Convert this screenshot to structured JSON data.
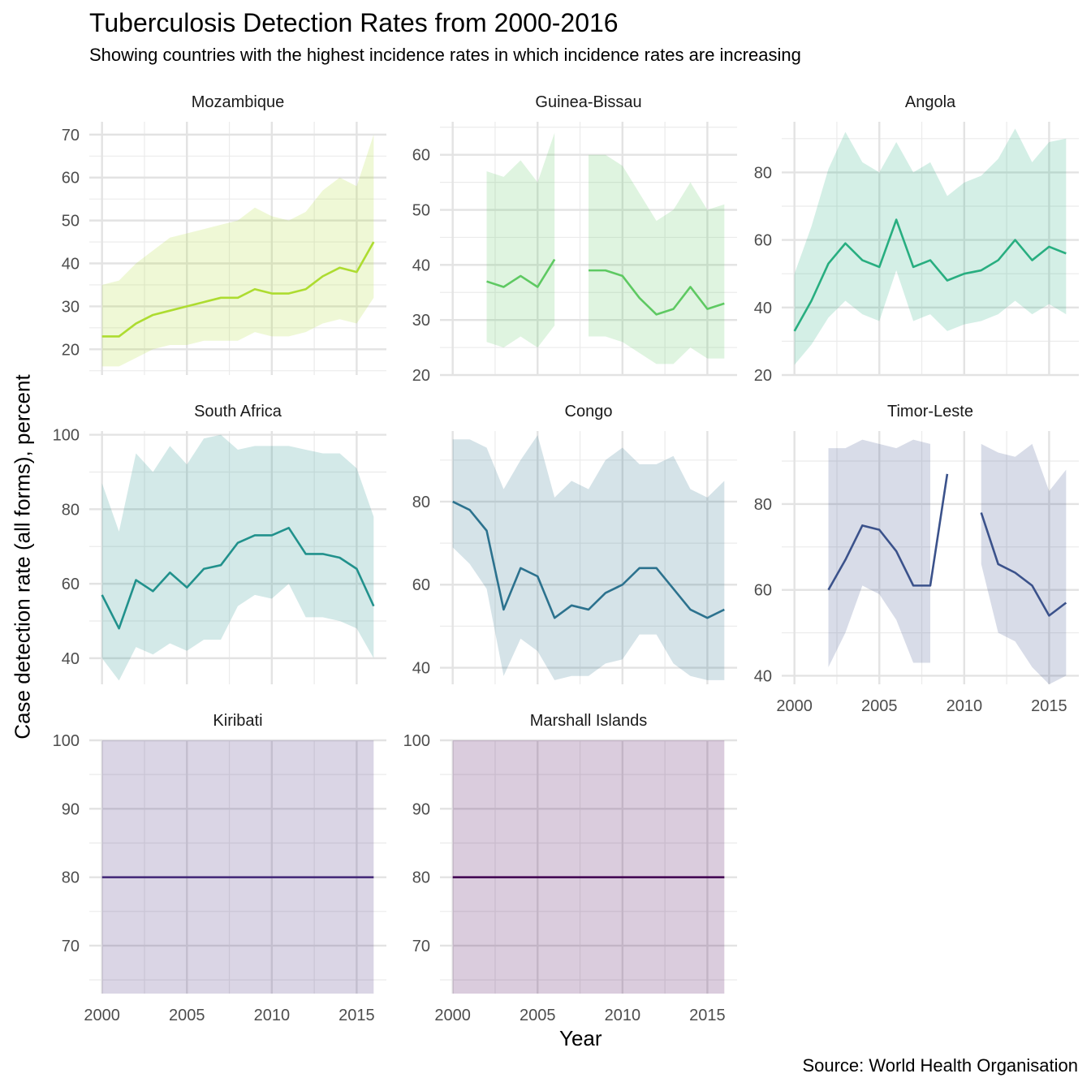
{
  "chart_data": {
    "type": "line",
    "title": "Tuberculosis Detection Rates from 2000-2016",
    "subtitle": "Showing countries with the highest incidence rates in which incidence rates are increasing",
    "caption": "Source: World Health Organisation",
    "xlabel": "Year",
    "ylabel": "Case detection rate (all forms), percent",
    "grid": true,
    "legend": "none",
    "x_ticks": [
      2000,
      2005,
      2010,
      2015
    ],
    "panels": [
      {
        "name": "Mozambique",
        "color": "#addc30",
        "years": [
          2000,
          2001,
          2002,
          2003,
          2004,
          2005,
          2006,
          2007,
          2008,
          2009,
          2010,
          2011,
          2012,
          2013,
          2014,
          2015,
          2016
        ],
        "values": [
          23,
          23,
          26,
          28,
          29,
          30,
          31,
          32,
          32,
          34,
          33,
          33,
          34,
          37,
          39,
          38,
          45
        ],
        "lower": [
          16,
          16,
          18,
          20,
          21,
          21,
          22,
          22,
          22,
          24,
          23,
          23,
          24,
          26,
          27,
          26,
          32
        ],
        "upper": [
          35,
          36,
          40,
          43,
          46,
          47,
          48,
          49,
          50,
          53,
          51,
          50,
          52,
          57,
          60,
          58,
          70
        ],
        "ylim": [
          14,
          73
        ],
        "y_ticks": [
          20,
          30,
          40,
          50,
          60,
          70
        ]
      },
      {
        "name": "Guinea-Bissau",
        "color": "#5ec962",
        "years": [
          2002,
          2003,
          2004,
          2005,
          2006,
          null,
          2008,
          2009,
          2010,
          2011,
          2012,
          2013,
          2014,
          2015,
          2016
        ],
        "values": [
          37,
          36,
          38,
          36,
          41,
          null,
          39,
          39,
          38,
          34,
          31,
          32,
          36,
          32,
          33
        ],
        "lower": [
          26,
          25,
          27,
          25,
          29,
          null,
          27,
          27,
          26,
          24,
          22,
          22,
          25,
          23,
          23
        ],
        "upper": [
          57,
          56,
          59,
          55,
          64,
          null,
          60,
          60,
          58,
          53,
          48,
          50,
          55,
          50,
          51
        ],
        "ylim": [
          20,
          66
        ],
        "y_ticks": [
          20,
          30,
          40,
          50,
          60
        ]
      },
      {
        "name": "Angola",
        "color": "#28ae80",
        "years": [
          2000,
          2001,
          2002,
          2003,
          2004,
          2005,
          2006,
          2007,
          2008,
          2009,
          2010,
          2011,
          2012,
          2013,
          2014,
          2015,
          2016
        ],
        "values": [
          33,
          42,
          53,
          59,
          54,
          52,
          66,
          52,
          54,
          48,
          50,
          51,
          54,
          60,
          54,
          58,
          56
        ],
        "lower": [
          23,
          29,
          37,
          42,
          38,
          36,
          51,
          36,
          38,
          33,
          35,
          36,
          38,
          42,
          38,
          41,
          38
        ],
        "upper": [
          50,
          64,
          81,
          92,
          83,
          80,
          89,
          80,
          83,
          73,
          77,
          79,
          84,
          93,
          83,
          89,
          90
        ],
        "ylim": [
          20,
          95
        ],
        "y_ticks": [
          20,
          40,
          60,
          80
        ]
      },
      {
        "name": "South Africa",
        "color": "#21918c",
        "years": [
          2000,
          2001,
          2002,
          2003,
          2004,
          2005,
          2006,
          2007,
          2008,
          2009,
          2010,
          2011,
          2012,
          2013,
          2014,
          2015,
          2016
        ],
        "values": [
          57,
          48,
          61,
          58,
          63,
          59,
          64,
          65,
          71,
          73,
          73,
          75,
          68,
          68,
          67,
          64,
          54
        ],
        "lower": [
          40,
          34,
          43,
          41,
          44,
          42,
          45,
          45,
          54,
          57,
          56,
          60,
          51,
          51,
          50,
          48,
          40
        ],
        "upper": [
          87,
          74,
          95,
          90,
          97,
          92,
          99,
          100,
          96,
          97,
          97,
          97,
          96,
          95,
          95,
          91,
          78
        ],
        "ylim": [
          33,
          101
        ],
        "y_ticks": [
          40,
          60,
          80,
          100
        ]
      },
      {
        "name": "Congo",
        "color": "#2c728e",
        "years": [
          2000,
          2001,
          2002,
          2003,
          2004,
          2005,
          2006,
          2007,
          2008,
          2009,
          2010,
          2011,
          2012,
          2013,
          2014,
          2015,
          2016
        ],
        "values": [
          80,
          78,
          73,
          54,
          64,
          62,
          52,
          55,
          54,
          58,
          60,
          64,
          64,
          59,
          54,
          52,
          54
        ],
        "lower": [
          69,
          65,
          59,
          38,
          47,
          44,
          37,
          38,
          38,
          41,
          42,
          48,
          48,
          41,
          38,
          37,
          37
        ],
        "upper": [
          95,
          95,
          93,
          83,
          90,
          96,
          81,
          85,
          83,
          90,
          93,
          89,
          89,
          91,
          83,
          81,
          85
        ],
        "ylim": [
          36,
          97
        ],
        "y_ticks": [
          40,
          60,
          80
        ]
      },
      {
        "name": "Timor-Leste",
        "color": "#3b528b",
        "years": [
          2002,
          2003,
          2004,
          2005,
          2006,
          2007,
          2008,
          2009,
          null,
          2011,
          2012,
          2013,
          2014,
          2015,
          2016
        ],
        "values": [
          60,
          67,
          75,
          74,
          69,
          61,
          61,
          87,
          null,
          78,
          66,
          64,
          61,
          54,
          57
        ],
        "lower": [
          42,
          50,
          61,
          59,
          53,
          43,
          43,
          null,
          null,
          66,
          50,
          48,
          42,
          38,
          40
        ],
        "upper": [
          93,
          93,
          95,
          94,
          93,
          95,
          94,
          95,
          null,
          94,
          92,
          91,
          94,
          83,
          88
        ],
        "ylim": [
          38,
          97
        ],
        "y_ticks": [
          40,
          60,
          80
        ]
      },
      {
        "name": "Kiribati",
        "color": "#472d7b",
        "years": [
          2000,
          2016
        ],
        "values": [
          80,
          80
        ],
        "lower": [
          63,
          63
        ],
        "upper": [
          100,
          100
        ],
        "ylim": [
          63,
          100
        ],
        "y_ticks": [
          70,
          80,
          90,
          100
        ]
      },
      {
        "name": "Marshall Islands",
        "color": "#440154",
        "years": [
          2000,
          2016
        ],
        "values": [
          80,
          80
        ],
        "lower": [
          63,
          63
        ],
        "upper": [
          100,
          100
        ],
        "ylim": [
          63,
          100
        ],
        "y_ticks": [
          70,
          80,
          90,
          100
        ]
      }
    ]
  }
}
